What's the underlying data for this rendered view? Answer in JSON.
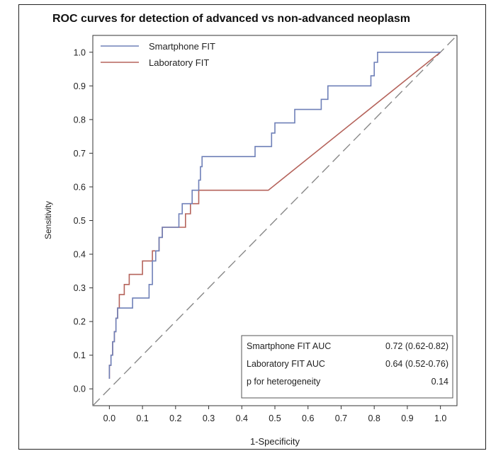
{
  "chart_data": {
    "type": "line",
    "title": "ROC curves for detection of advanced vs non-advanced neoplasm",
    "xlabel": "1-Specificity",
    "ylabel": "Sensitivity",
    "xlim": [
      -0.05,
      1.05
    ],
    "ylim": [
      -0.05,
      1.05
    ],
    "x_ticks": [
      "0.0",
      "0.1",
      "0.2",
      "0.3",
      "0.4",
      "0.5",
      "0.6",
      "0.7",
      "0.8",
      "0.9",
      "1.0"
    ],
    "y_ticks": [
      "0.0",
      "0.1",
      "0.2",
      "0.3",
      "0.4",
      "0.5",
      "0.6",
      "0.7",
      "0.8",
      "0.9",
      "1.0"
    ],
    "grid": false,
    "legend_position": "top-left",
    "series": [
      {
        "name": "Smartphone FIT",
        "color": "#6f80b8",
        "points": [
          [
            0,
            0.03
          ],
          [
            0,
            0.07
          ],
          [
            0.005,
            0.07
          ],
          [
            0.005,
            0.1
          ],
          [
            0.01,
            0.1
          ],
          [
            0.01,
            0.14
          ],
          [
            0.015,
            0.14
          ],
          [
            0.015,
            0.17
          ],
          [
            0.02,
            0.17
          ],
          [
            0.02,
            0.21
          ],
          [
            0.025,
            0.21
          ],
          [
            0.025,
            0.24
          ],
          [
            0.07,
            0.24
          ],
          [
            0.07,
            0.27
          ],
          [
            0.12,
            0.27
          ],
          [
            0.12,
            0.31
          ],
          [
            0.13,
            0.31
          ],
          [
            0.13,
            0.38
          ],
          [
            0.14,
            0.38
          ],
          [
            0.14,
            0.41
          ],
          [
            0.15,
            0.41
          ],
          [
            0.15,
            0.45
          ],
          [
            0.16,
            0.45
          ],
          [
            0.16,
            0.48
          ],
          [
            0.21,
            0.48
          ],
          [
            0.21,
            0.52
          ],
          [
            0.22,
            0.52
          ],
          [
            0.22,
            0.55
          ],
          [
            0.25,
            0.55
          ],
          [
            0.25,
            0.59
          ],
          [
            0.27,
            0.59
          ],
          [
            0.27,
            0.62
          ],
          [
            0.275,
            0.62
          ],
          [
            0.275,
            0.66
          ],
          [
            0.28,
            0.66
          ],
          [
            0.28,
            0.69
          ],
          [
            0.44,
            0.69
          ],
          [
            0.44,
            0.72
          ],
          [
            0.49,
            0.72
          ],
          [
            0.49,
            0.76
          ],
          [
            0.5,
            0.76
          ],
          [
            0.5,
            0.79
          ],
          [
            0.56,
            0.79
          ],
          [
            0.56,
            0.83
          ],
          [
            0.64,
            0.83
          ],
          [
            0.64,
            0.86
          ],
          [
            0.66,
            0.86
          ],
          [
            0.66,
            0.9
          ],
          [
            0.79,
            0.9
          ],
          [
            0.79,
            0.93
          ],
          [
            0.8,
            0.93
          ],
          [
            0.8,
            0.97
          ],
          [
            0.81,
            0.97
          ],
          [
            0.81,
            1.0
          ],
          [
            1.0,
            1.0
          ]
        ]
      },
      {
        "name": "Laboratory FIT",
        "color": "#b5635b",
        "points": [
          [
            0,
            0.03
          ],
          [
            0,
            0.07
          ],
          [
            0.005,
            0.07
          ],
          [
            0.005,
            0.1
          ],
          [
            0.01,
            0.1
          ],
          [
            0.01,
            0.14
          ],
          [
            0.015,
            0.14
          ],
          [
            0.015,
            0.17
          ],
          [
            0.02,
            0.17
          ],
          [
            0.02,
            0.21
          ],
          [
            0.025,
            0.21
          ],
          [
            0.025,
            0.24
          ],
          [
            0.03,
            0.24
          ],
          [
            0.03,
            0.28
          ],
          [
            0.045,
            0.28
          ],
          [
            0.045,
            0.31
          ],
          [
            0.06,
            0.31
          ],
          [
            0.06,
            0.34
          ],
          [
            0.1,
            0.34
          ],
          [
            0.1,
            0.38
          ],
          [
            0.13,
            0.38
          ],
          [
            0.13,
            0.41
          ],
          [
            0.15,
            0.41
          ],
          [
            0.15,
            0.45
          ],
          [
            0.16,
            0.45
          ],
          [
            0.16,
            0.48
          ],
          [
            0.23,
            0.48
          ],
          [
            0.23,
            0.52
          ],
          [
            0.245,
            0.52
          ],
          [
            0.245,
            0.55
          ],
          [
            0.27,
            0.55
          ],
          [
            0.27,
            0.59
          ],
          [
            0.48,
            0.59
          ],
          [
            1.0,
            1.0
          ]
        ]
      },
      {
        "name": "",
        "color": "#888888",
        "dashed": true,
        "points": [
          [
            -0.05,
            -0.05
          ],
          [
            1.05,
            1.05
          ]
        ]
      }
    ],
    "stats_table": [
      {
        "label": "Smartphone FIT AUC",
        "value": "0.72 (0.62-0.82)"
      },
      {
        "label": "Laboratory FIT AUC",
        "value": "0.64 (0.52-0.76)"
      },
      {
        "label": "p for heterogeneity",
        "value": "0.14"
      }
    ]
  }
}
